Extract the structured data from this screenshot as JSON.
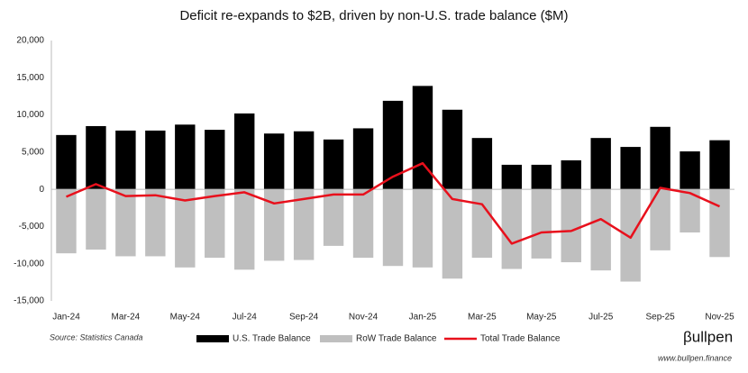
{
  "chart_data": {
    "type": "bar",
    "title": "Deficit re-expands to $2B, driven by non-U.S. trade balance ($M)",
    "categories": [
      "Jan-24",
      null,
      "Mar-24",
      null,
      "May-24",
      null,
      "Jul-24",
      null,
      "Sep-24",
      null,
      "Nov-24",
      null,
      "Jan-25",
      null,
      "Mar-25",
      null,
      "May-25",
      null,
      "Jul-25",
      null,
      "Sep-25",
      null,
      "Nov-25"
    ],
    "series": [
      {
        "name": "U.S. Trade Balance",
        "type": "bar",
        "color": "#000000",
        "values": [
          7300,
          8500,
          7900,
          7900,
          8700,
          8000,
          10200,
          7500,
          7800,
          6700,
          8200,
          11900,
          13900,
          10700,
          6900,
          3300,
          3300,
          3900,
          6900,
          5700,
          8400,
          5100,
          6600
        ]
      },
      {
        "name": "RoW Trade Balance",
        "type": "bar",
        "color": "#bfbfbf",
        "values": [
          -8600,
          -8100,
          -9000,
          -9000,
          -10500,
          -9200,
          -10800,
          -9600,
          -9500,
          -7600,
          -9200,
          -10300,
          -10500,
          -12000,
          -9200,
          -10700,
          -9300,
          -9800,
          -10900,
          -12400,
          -8200,
          -5800,
          -9100
        ]
      },
      {
        "name": "Total Trade Balance",
        "type": "line",
        "color": "#e8101c",
        "values": [
          -1000,
          700,
          -900,
          -800,
          -1500,
          -900,
          -400,
          -1900,
          -1300,
          -700,
          -700,
          1700,
          3500,
          -1300,
          -2000,
          -7300,
          -5800,
          -5600,
          -4000,
          -6500,
          200,
          -500,
          -2300
        ]
      }
    ],
    "ylim": [
      -15000,
      20000
    ],
    "yticks": [
      {
        "value": -15000,
        "label": "-15,000"
      },
      {
        "value": -10000,
        "label": "-10,000"
      },
      {
        "value": -5000,
        "label": "-5,000"
      },
      0,
      {
        "value": 5000,
        "label": "5,000"
      },
      {
        "value": 10000,
        "label": "10,000"
      },
      {
        "value": 15000,
        "label": "15,000"
      },
      {
        "value": 20000,
        "label": "20,000"
      }
    ],
    "grid": false,
    "legend": "bottom",
    "source": "Source: Statistics Canada",
    "brand": "βullpen",
    "website": "www.bullpen.finance"
  }
}
